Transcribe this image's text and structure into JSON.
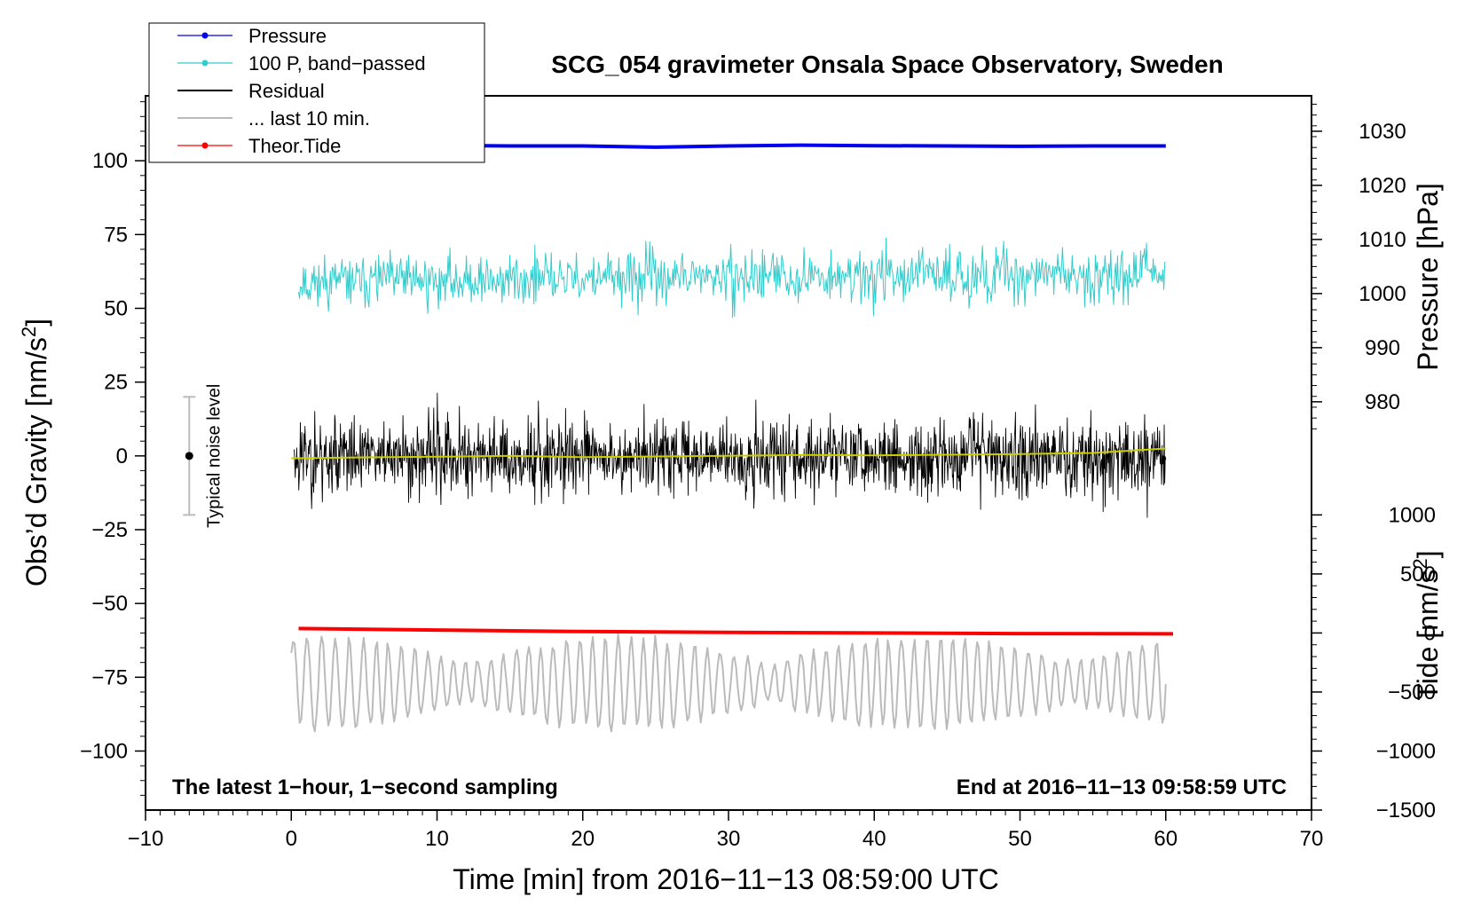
{
  "chart_data": {
    "type": "line",
    "title": "SCG_054 gravimeter Onsala Space Observatory, Sweden",
    "xlabel": "Time [min] from 2016−11−13 08:59:00 UTC",
    "ylabel_left_main": "Obs’d Gravity [nm/s",
    "ylabel_left_sup": "2",
    "ylabel_left_end": "]",
    "ylabel_right_pressure": "Pressure [hPa]",
    "ylabel_right_tide_main": "Tide [nm/s",
    "ylabel_right_tide_sup": "2",
    "ylabel_right_tide_end": "]",
    "xlim": [
      -10,
      70
    ],
    "ylim": [
      -120,
      122
    ],
    "x_ticks": [
      -10,
      0,
      10,
      20,
      30,
      40,
      50,
      60,
      70
    ],
    "x_tick_labels": [
      "−10",
      "0",
      "10",
      "20",
      "30",
      "40",
      "50",
      "60",
      "70"
    ],
    "y_ticks": [
      100,
      75,
      50,
      25,
      0,
      -25,
      -50,
      -75,
      -100
    ],
    "y_tick_labels": [
      "100",
      "75",
      "50",
      "25",
      "0",
      "−25",
      "−50",
      "−75",
      "−100"
    ],
    "pressure_ticks": [
      1030,
      1020,
      1010,
      1000,
      990,
      980
    ],
    "pressure_tick_labels": [
      "1030",
      "1020",
      "1010",
      "1000",
      "990",
      "980"
    ],
    "pressure_map": {
      "hpa_a": 1000,
      "y_a": 55,
      "hpa_b": 1030,
      "y_b": 110
    },
    "tide_ticks": [
      1000,
      500,
      0,
      -500,
      -1000,
      -1500
    ],
    "tide_tick_labels": [
      "1000",
      "500",
      "0",
      "−500",
      "−1000",
      "−1500"
    ],
    "tide_map": {
      "tide_a": 0,
      "y_a": -60,
      "tide_b": 1000,
      "y_b": -20
    },
    "legend_position": "top-left",
    "legend": [
      {
        "label": "Pressure",
        "color": "#0000ee",
        "marker": true
      },
      {
        "label": "100 P, band−passed",
        "color": "#33cccc",
        "marker": true
      },
      {
        "label": "Residual",
        "color": "#000000",
        "marker": false
      },
      {
        "label": "... last 10 min.",
        "color": "#bbbbbb",
        "marker": false
      },
      {
        "label": "Theor.Tide",
        "color": "#ff0000",
        "marker": true
      }
    ],
    "series": [
      {
        "name": "Pressure",
        "color": "#0000ee",
        "style": "thick-line",
        "x": [
          0,
          5,
          10,
          15,
          20,
          25,
          30,
          35,
          40,
          45,
          50,
          55,
          60
        ],
        "values": [
          104.5,
          105.0,
          105.2,
          105.0,
          105.0,
          104.6,
          105.0,
          105.3,
          105.1,
          105.0,
          104.9,
          105.0,
          105.0
        ]
      },
      {
        "name": "100 P, band-passed",
        "color": "#33cccc",
        "style": "noise",
        "x_range": [
          0.5,
          60
        ],
        "center": 59,
        "center_end": 62,
        "amplitude": 7.5,
        "samples": 900,
        "seed": 11
      },
      {
        "name": "Residual",
        "color": "#000000",
        "style": "noise",
        "x_range": [
          0.2,
          60
        ],
        "center": 0,
        "center_end": 0,
        "amplitude": 11,
        "samples": 1700,
        "seed": 23
      },
      {
        "name": "Residual smoothed",
        "color": "#cccc00",
        "style": "line",
        "x": [
          0,
          5,
          10,
          15,
          20,
          25,
          30,
          35,
          40,
          45,
          50,
          55,
          60
        ],
        "values": [
          -0.8,
          -0.5,
          -0.3,
          0.0,
          -0.4,
          -0.2,
          0.0,
          0.3,
          0.2,
          0.4,
          0.6,
          1.0,
          2.5
        ]
      },
      {
        "name": "... last 10 min.",
        "color": "#bbbbbb",
        "style": "wave",
        "x_range": [
          0,
          60
        ],
        "center": -77,
        "amplitude": 10,
        "samples": 520,
        "seed": 37
      },
      {
        "name": "Theor.Tide",
        "color": "#ff0000",
        "style": "thick-line",
        "x": [
          0.5,
          10,
          20,
          30,
          40,
          50,
          60.5
        ],
        "values": [
          -58.5,
          -59.0,
          -59.5,
          -59.8,
          -60.0,
          -60.2,
          -60.3
        ]
      }
    ],
    "noise_bar": {
      "label": "Typical noise level",
      "x": -7,
      "center": 0,
      "half_range": 20
    },
    "footer_left": "The latest 1−hour, 1−second sampling",
    "footer_right": "End at 2016−11−13 09:58:59 UTC"
  }
}
